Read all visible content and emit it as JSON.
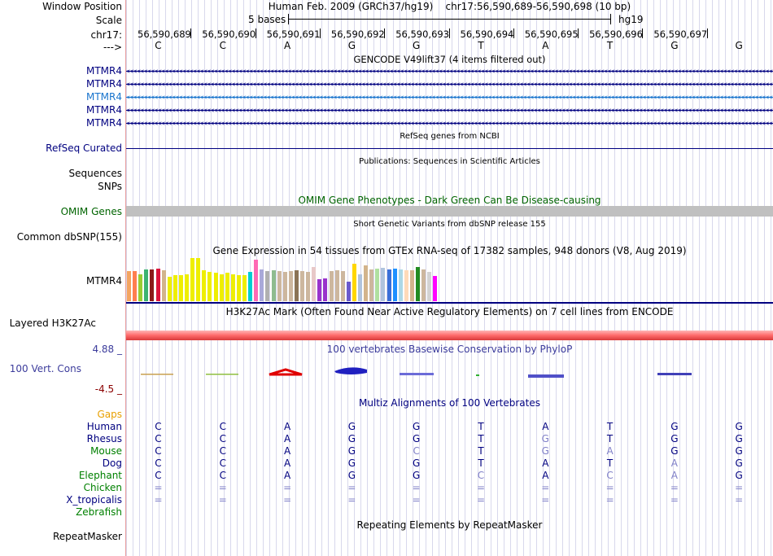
{
  "labels": {
    "window_position": "Window Position",
    "scale": "Scale",
    "chrom": "chr17:",
    "arrow": "--->",
    "gencode_rows": [
      "MTMR4",
      "MTMR4",
      "MTMR4",
      "MTMR4",
      "MTMR4"
    ],
    "refseq": "RefSeq Curated",
    "sequences": "Sequences",
    "snps": "SNPs",
    "omim": "OMIM Genes",
    "common_dbsnp": "Common dbSNP(155)",
    "gtex": "MTMR4",
    "h3k27ac": "Layered H3K27Ac",
    "cons_max": "4.88 _",
    "cons": "100 Vert. Cons",
    "cons_min": "-4.5 _",
    "gaps": "Gaps",
    "species": [
      "Human",
      "Rhesus",
      "Mouse",
      "Dog",
      "Elephant",
      "Chicken",
      "X_tropicalis",
      "Zebrafish"
    ],
    "repeatmasker": "RepeatMasker"
  },
  "header": {
    "assembly": "Human Feb. 2009 (GRCh37/hg19)",
    "position": "chr17:56,590,689-56,590,698 (10 bp)",
    "scale_text": "5 bases",
    "scale_db": "hg19",
    "coords": [
      "56,590,689",
      "56,590,690",
      "56,590,691",
      "56,590,692",
      "56,590,693",
      "56,590,694",
      "56,590,695",
      "56,590,696",
      "56,590,697"
    ],
    "bases": [
      "C",
      "C",
      "A",
      "G",
      "G",
      "T",
      "A",
      "T",
      "G",
      "G"
    ]
  },
  "tracks": {
    "gencode_title": "GENCODE V49lift37 (4 items filtered out)",
    "refseq_title": "RefSeq genes from NCBI",
    "publications_title": "Publications: Sequences in Scientific Articles",
    "omim_title": "OMIM Gene Phenotypes - Dark Green Can Be Disease-causing",
    "dbsnp_title": "Short Genetic Variants from dbSNP release 155",
    "gtex_title": "Gene Expression in 54 tissues from GTEx RNA-seq of 17382 samples, 948 donors (V8, Aug 2019)",
    "h3k27ac_title": "H3K27Ac Mark (Often Found Near Active Regulatory Elements) on 7 cell lines from ENCODE",
    "phylop_title": "100 vertebrates Basewise Conservation by PhyloP",
    "multiz_title": "Multiz Alignments of 100 Vertebrates",
    "repeatmasker_title": "Repeating Elements by RepeatMasker"
  },
  "gtex_bars": [
    {
      "v": 0.68,
      "c": "#f4a460"
    },
    {
      "v": 0.68,
      "c": "#ff7f50"
    },
    {
      "v": 0.62,
      "c": "#9acd32"
    },
    {
      "v": 0.72,
      "c": "#3cb371"
    },
    {
      "v": 0.72,
      "c": "#8b1a1a"
    },
    {
      "v": 0.74,
      "c": "#dc143c"
    },
    {
      "v": 0.7,
      "c": "#d2b48c"
    },
    {
      "v": 0.56,
      "c": "#eeee00"
    },
    {
      "v": 0.6,
      "c": "#eeee00"
    },
    {
      "v": 0.6,
      "c": "#eeee00"
    },
    {
      "v": 0.62,
      "c": "#eeee00"
    },
    {
      "v": 0.98,
      "c": "#eeee00"
    },
    {
      "v": 0.98,
      "c": "#eeee00"
    },
    {
      "v": 0.7,
      "c": "#eeee00"
    },
    {
      "v": 0.66,
      "c": "#eeee00"
    },
    {
      "v": 0.64,
      "c": "#eeee00"
    },
    {
      "v": 0.62,
      "c": "#eeee00"
    },
    {
      "v": 0.64,
      "c": "#eeee00"
    },
    {
      "v": 0.62,
      "c": "#eeee00"
    },
    {
      "v": 0.6,
      "c": "#eeee00"
    },
    {
      "v": 0.6,
      "c": "#eeee00"
    },
    {
      "v": 0.66,
      "c": "#00ced1"
    },
    {
      "v": 0.95,
      "c": "#ff69b4"
    },
    {
      "v": 0.72,
      "c": "#a9a9d9"
    },
    {
      "v": 0.68,
      "c": "#b0b0b0"
    },
    {
      "v": 0.7,
      "c": "#8fbc8f"
    },
    {
      "v": 0.68,
      "c": "#cdb79e"
    },
    {
      "v": 0.66,
      "c": "#cdb79e"
    },
    {
      "v": 0.68,
      "c": "#cdb79e"
    },
    {
      "v": 0.7,
      "c": "#8b7355"
    },
    {
      "v": 0.68,
      "c": "#cdb79e"
    },
    {
      "v": 0.66,
      "c": "#cdb79e"
    },
    {
      "v": 0.78,
      "c": "#e8c8c8"
    },
    {
      "v": 0.5,
      "c": "#9932cc"
    },
    {
      "v": 0.52,
      "c": "#9932cc"
    },
    {
      "v": 0.68,
      "c": "#cdb79e"
    },
    {
      "v": 0.7,
      "c": "#cdb79e"
    },
    {
      "v": 0.68,
      "c": "#cdb79e"
    },
    {
      "v": 0.44,
      "c": "#6a5acd"
    },
    {
      "v": 0.86,
      "c": "#ffd700"
    },
    {
      "v": 0.62,
      "c": "#b0c4de"
    },
    {
      "v": 0.82,
      "c": "#d2b48c"
    },
    {
      "v": 0.72,
      "c": "#cdb79e"
    },
    {
      "v": 0.74,
      "c": "#b0e0a0"
    },
    {
      "v": 0.76,
      "c": "#b0c4de"
    },
    {
      "v": 0.72,
      "c": "#3a6fd8"
    },
    {
      "v": 0.74,
      "c": "#1e90ff"
    },
    {
      "v": 0.72,
      "c": "#add8e6"
    },
    {
      "v": 0.7,
      "c": "#ffdab9"
    },
    {
      "v": 0.7,
      "c": "#d2b48c"
    },
    {
      "v": 0.78,
      "c": "#228b22"
    },
    {
      "v": 0.72,
      "c": "#cdb79e"
    },
    {
      "v": 0.66,
      "c": "#d3d3d3"
    },
    {
      "v": 0.58,
      "c": "#ff00ff"
    }
  ],
  "alignments": [
    [
      "C",
      "C",
      "A",
      "G",
      "G",
      "T",
      "A",
      "T",
      "G",
      "G"
    ],
    [
      "C",
      "C",
      "A",
      "G",
      "G",
      "T",
      "G",
      "T",
      "G",
      "G"
    ],
    [
      "C",
      "C",
      "A",
      "G",
      "C",
      "T",
      "G",
      "A",
      "G",
      "G"
    ],
    [
      "C",
      "C",
      "A",
      "G",
      "G",
      "T",
      "A",
      "T",
      "A",
      "G"
    ],
    [
      "C",
      "C",
      "A",
      "G",
      "G",
      "C",
      "A",
      "C",
      "A",
      "G"
    ],
    [
      "=",
      "=",
      "=",
      "=",
      "=",
      "=",
      "=",
      "=",
      "=",
      "="
    ],
    [
      "=",
      "=",
      "=",
      "=",
      "=",
      "=",
      "=",
      "=",
      "=",
      "="
    ],
    [
      "",
      "",
      "",
      "",
      "",
      "",
      "",
      "",
      "",
      ""
    ]
  ],
  "colors": {
    "track_label": "#000080",
    "highlight_gene": "#1874cd",
    "omim_green": "#006400",
    "gaps_orange": "#e8a000",
    "species_green": "#008000",
    "cons_red": "#8b0000",
    "conservation_blue": "#3c3c9c"
  }
}
